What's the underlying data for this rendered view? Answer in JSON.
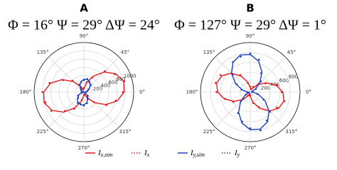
{
  "chart_data": [
    {
      "type": "polar",
      "title": "A",
      "subtitle": "Φ = 16°  Ψ = 29°  ΔΨ = 24°",
      "theta": [
        0,
        15,
        30,
        45,
        60,
        75,
        90,
        105,
        120,
        135,
        150,
        165,
        180,
        195,
        210,
        225,
        240,
        255,
        270,
        285,
        300,
        315,
        330,
        345
      ],
      "rlim": [
        0,
        1200
      ],
      "rticks": [
        200,
        400,
        600,
        800,
        1000
      ],
      "thetaticks": [
        {
          "value": 0,
          "label": "0°"
        },
        {
          "value": 45,
          "label": "45°"
        },
        {
          "value": 90,
          "label": "90°"
        },
        {
          "value": 135,
          "label": "135°"
        },
        {
          "value": 180,
          "label": "180°"
        },
        {
          "value": 225,
          "label": "225°"
        },
        {
          "value": 270,
          "label": "270°"
        },
        {
          "value": 315,
          "label": "315°"
        }
      ],
      "series": [
        {
          "name": "Ix,sim",
          "color": "#e41a1c",
          "style": "line",
          "values": [
            971,
            992,
            889,
            687,
            442,
            220,
            79,
            57,
            161,
            363,
            608,
            830,
            971,
            992,
            889,
            687,
            442,
            220,
            79,
            57,
            161,
            363,
            608,
            830
          ]
        },
        {
          "name": "Ix",
          "color": "#e41a1c",
          "style": "dots",
          "values": [
            940,
            1010,
            860,
            720,
            410,
            250,
            100,
            80,
            140,
            390,
            580,
            860,
            1000,
            960,
            910,
            650,
            470,
            200,
            60,
            70,
            190,
            340,
            630,
            800
          ]
        },
        {
          "name": "Iy,sim",
          "color": "#1f3fbf",
          "style": "line",
          "values": [
            29,
            74,
            144,
            221,
            285,
            318,
            311,
            266,
            196,
            119,
            55,
            22,
            29,
            74,
            144,
            221,
            285,
            318,
            311,
            266,
            196,
            119,
            55,
            22
          ]
        },
        {
          "name": "Iy",
          "color": "#1f3fbf",
          "style": "dots",
          "values": [
            40,
            90,
            130,
            240,
            270,
            330,
            290,
            250,
            210,
            100,
            70,
            30,
            20,
            60,
            160,
            200,
            300,
            300,
            330,
            280,
            180,
            130,
            40,
            30
          ]
        }
      ]
    },
    {
      "type": "polar",
      "title": "B",
      "subtitle": "Φ = 127°  Ψ = 29°  ΔΨ = 1°",
      "theta": [
        0,
        15,
        30,
        45,
        60,
        75,
        90,
        105,
        120,
        135,
        150,
        165,
        180,
        195,
        210,
        225,
        240,
        255,
        270,
        285,
        300,
        315,
        330,
        345
      ],
      "rlim": [
        0,
        1000
      ],
      "rticks": [
        200,
        400,
        600,
        800
      ],
      "thetaticks": [
        {
          "value": 0,
          "label": "0°"
        },
        {
          "value": 45,
          "label": "45°"
        },
        {
          "value": 90,
          "label": "90°"
        },
        {
          "value": 135,
          "label": "135°"
        },
        {
          "value": 180,
          "label": "180°"
        },
        {
          "value": 225,
          "label": "225°"
        },
        {
          "value": 270,
          "label": "270°"
        },
        {
          "value": 315,
          "label": "315°"
        }
      ],
      "series": [
        {
          "color": "#e41a1c",
          "style": "line",
          "values": [
            656,
            538,
            375,
            213,
            93,
            50,
            93,
            213,
            375,
            538,
            656,
            700,
            656,
            538,
            375,
            213,
            93,
            50,
            93,
            213,
            375,
            538,
            656,
            700
          ]
        },
        {
          "color": "#e41a1c",
          "style": "dots",
          "values": [
            630,
            560,
            350,
            240,
            120,
            60,
            110,
            190,
            400,
            500,
            690,
            720,
            680,
            520,
            390,
            200,
            80,
            40,
            70,
            230,
            350,
            560,
            620,
            710
          ]
        },
        {
          "color": "#1f3fbf",
          "style": "line",
          "values": [
            53,
            36,
            118,
            277,
            470,
            646,
            758,
            774,
            692,
            533,
            340,
            164,
            53,
            36,
            118,
            277,
            470,
            646,
            758,
            774,
            692,
            533,
            340,
            164
          ]
        },
        {
          "color": "#1f3fbf",
          "style": "dots",
          "values": [
            40,
            50,
            130,
            300,
            440,
            680,
            780,
            740,
            700,
            500,
            320,
            180,
            60,
            30,
            100,
            260,
            490,
            620,
            730,
            800,
            660,
            560,
            310,
            150
          ]
        }
      ]
    }
  ]
}
